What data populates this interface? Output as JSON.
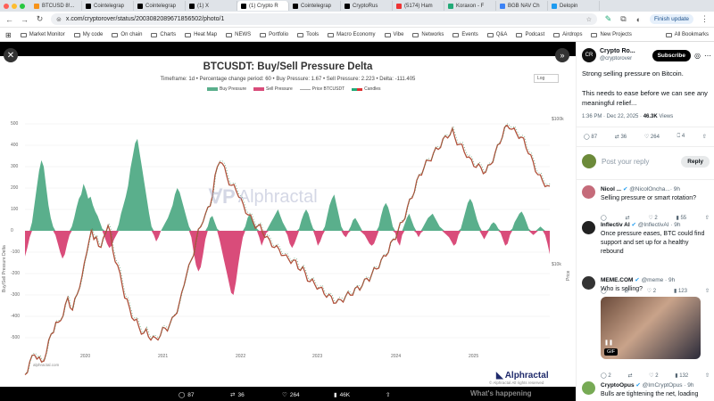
{
  "browser": {
    "tabs": [
      {
        "title": "BTCUSD 8!...",
        "color": "#f7931a"
      },
      {
        "title": "Cointelegrap",
        "color": "#000"
      },
      {
        "title": "Cointelegrap",
        "color": "#000"
      },
      {
        "title": "(1) X",
        "color": "#000"
      },
      {
        "title": "(1) Crypto R",
        "color": "#000",
        "active": true
      },
      {
        "title": "Cointelegrap",
        "color": "#000"
      },
      {
        "title": "CryptoRus",
        "color": "#000"
      },
      {
        "title": "(5174) Ham",
        "color": "#e33"
      },
      {
        "title": "Koraxon - F",
        "color": "#2a7"
      },
      {
        "title": "BGB NAV Ch",
        "color": "#3b82f6"
      },
      {
        "title": "Delopin",
        "color": "#1d9bf0"
      }
    ],
    "url": "x.com/cryptorover/status/2003082089671856502/photo/1",
    "finish_update": "Finish update",
    "bookmarks": [
      "Market Monitor",
      "My code",
      "On chain",
      "Charts",
      "Heat Map",
      "NEWS",
      "Portfolio",
      "Tools",
      "Macro Economy",
      "Vibe",
      "Networks",
      "Events",
      "Q&A",
      "Podcast",
      "Airdrops",
      "New Projects"
    ],
    "all_bookmarks": "All Bookmarks"
  },
  "chart_data": {
    "type": "area",
    "title": "BTCUSDT: Buy/Sell Pressure Delta",
    "subtitle": "Timeframe: 1d  •  Percentage change period: 60  •  Buy Pressure: 1.67  •  Sell Pressure: 2.223  •  Delta: -111.405",
    "legend": [
      "Buy Pressure",
      "Sell Pressure",
      "Price BTCUSDT",
      "Candles"
    ],
    "colors": {
      "buy": "#5aaf8c",
      "sell": "#d94c7a",
      "price": "#b0503a"
    },
    "ylabel": "Buy/Sell Pressure Delta",
    "y2label": "Price",
    "y_ticks": [
      500,
      400,
      300,
      200,
      100,
      0,
      -100,
      -200,
      -300,
      -400,
      -500
    ],
    "ylim": [
      -500,
      500
    ],
    "x_ticks": [
      "2020",
      "2021",
      "2022",
      "2023",
      "2024",
      "2025"
    ],
    "y2_ticks": [
      "$100k",
      "$10k"
    ],
    "log_selector": "Log",
    "watermark": "Alphractal",
    "brand": "Alphractal",
    "footer_left": "alphractal.com",
    "footer_right": "© Alphractal All rights reserved",
    "delta": [
      -120,
      -80,
      -30,
      40,
      120,
      200,
      280,
      330,
      300,
      210,
      120,
      60,
      20,
      -20,
      -60,
      -100,
      -130,
      -110,
      -60,
      -20,
      20,
      60,
      110,
      150,
      170,
      220,
      190,
      150,
      160,
      120,
      90,
      70,
      40,
      10,
      -30,
      -60,
      -80,
      -70,
      -40,
      -20,
      30,
      80,
      120,
      160,
      210,
      290,
      350,
      410,
      430,
      360,
      290,
      220,
      150,
      80,
      20,
      -20,
      -50,
      -30,
      0,
      20,
      40,
      60,
      90,
      120,
      170,
      200,
      180,
      140,
      100,
      60,
      20,
      -30,
      -100,
      -160,
      -190,
      -170,
      -110,
      -40,
      20,
      60,
      70,
      40,
      10,
      -40,
      -90,
      -140,
      -190,
      -240,
      -290,
      -300,
      -240,
      -160,
      -90,
      -30,
      20,
      60,
      80,
      60,
      30,
      10,
      -30,
      -70,
      -40,
      -10,
      20,
      40,
      60,
      80,
      100,
      70,
      40,
      20,
      -20,
      -60,
      -80,
      -60,
      -30,
      10,
      50,
      80,
      100,
      80,
      40,
      10,
      -30,
      -70,
      -50,
      -20,
      20,
      70,
      120,
      150,
      170,
      120,
      70,
      20,
      -20,
      -30,
      -10,
      20,
      50,
      60,
      40,
      20,
      -10,
      -20,
      -40,
      -60,
      -70,
      -60,
      -30,
      20,
      70,
      110,
      130,
      110,
      70,
      20,
      -10,
      -50,
      -70,
      -20,
      30,
      60,
      80,
      50,
      20,
      -10,
      -30,
      -10,
      20,
      40,
      60,
      70,
      80,
      60,
      40,
      20,
      10,
      -10,
      -20,
      -30,
      -50,
      -70,
      -60,
      -20,
      10,
      50,
      90,
      130,
      150,
      130,
      90,
      50,
      20,
      -20,
      -40,
      -20,
      10,
      30,
      40,
      30,
      10,
      -10,
      -40,
      -70,
      -60,
      -20,
      10,
      40,
      60,
      80,
      90,
      70,
      40,
      10,
      -10,
      -20,
      -10,
      10,
      20,
      10,
      -20,
      -60,
      -110
    ],
    "price_points": [
      5,
      12,
      20,
      25,
      32,
      28,
      24,
      18,
      26,
      34,
      44,
      55,
      62,
      70,
      66,
      74,
      82,
      90,
      98,
      92,
      88,
      96,
      104,
      118,
      128,
      140,
      158,
      176,
      184,
      170,
      180,
      168,
      160,
      174,
      186,
      192,
      178,
      160,
      150,
      140,
      128,
      118,
      104,
      96,
      86,
      80,
      74,
      70,
      64,
      60,
      56,
      58,
      54,
      52,
      50,
      48,
      52,
      56,
      60,
      62,
      64,
      68,
      72,
      80,
      86,
      92,
      104,
      120,
      132,
      138,
      146,
      158,
      172,
      182,
      190,
      200,
      204,
      210,
      218,
      232,
      250,
      262,
      274,
      270,
      260,
      252,
      246,
      240,
      238,
      236,
      230,
      222,
      214,
      210,
      206,
      200,
      195,
      192,
      190,
      188,
      184,
      180,
      175,
      170,
      168,
      166,
      162,
      160,
      158,
      154,
      150,
      150,
      148,
      146,
      144,
      140,
      138,
      136,
      130,
      126,
      122,
      120,
      118,
      116,
      112,
      110,
      108,
      105,
      102,
      100,
      98,
      96,
      95,
      98,
      100,
      102,
      104,
      106,
      108,
      110,
      112,
      114,
      118,
      120,
      124,
      126,
      130,
      134,
      138,
      142,
      146,
      150,
      156,
      160,
      166,
      172,
      178,
      184,
      190,
      196,
      204,
      212,
      220,
      228,
      236,
      244,
      252,
      258,
      264,
      268,
      272,
      276,
      280,
      284,
      288,
      292,
      296,
      300,
      304,
      306,
      308,
      300,
      296,
      292,
      288,
      284,
      280,
      274,
      270,
      268,
      266,
      264,
      262,
      260,
      258,
      262,
      268,
      274,
      280,
      288,
      296,
      304,
      310,
      314,
      316,
      312,
      308,
      306,
      304,
      300,
      296,
      290,
      284,
      276,
      268,
      262,
      256,
      250,
      246,
      244,
      240,
      236
    ]
  },
  "tweet": {
    "author": "Crypto Ro...",
    "handle": "@cryptorover",
    "subscribe": "Subscribe",
    "text1": "Strong selling pressure on Bitcoin.",
    "text2": "This needs to ease before we can see any meaningful relief...",
    "time": "1:36 PM · Dec 22, 2025 ·",
    "views": "46.3K",
    "views_label": "Views",
    "stats": {
      "replies": "87",
      "reposts": "36",
      "likes": "264",
      "bookmarks": "4"
    },
    "reply_placeholder": "Post your reply",
    "reply_button": "Reply"
  },
  "replies": [
    {
      "name": "Nicol ...",
      "handle": "@NicolOncha...",
      "time": "· 9h",
      "text": "Selling pressure or smart rotation?",
      "reply": "",
      "repost": "",
      "like": "2",
      "views": "55",
      "avatar": "#c56b7a"
    },
    {
      "name": "Inflectiv AI",
      "handle": "@InflectivAI · 9h",
      "time": "",
      "text": "Once pressure eases, BTC could find support and set up for a healthy rebound",
      "reply": "",
      "repost": "",
      "like": "2",
      "views": "123",
      "avatar": "#222"
    },
    {
      "name": "MEME.COM",
      "handle": "@meme · 9h",
      "time": "",
      "text": "Who is selling?",
      "reply": "2",
      "repost": "",
      "like": "2",
      "views": "132",
      "avatar": "#333",
      "gif": "GIF"
    },
    {
      "name": "CryptoOpus",
      "handle": "@ImCryptOpus · 9h",
      "time": "",
      "text": "Bulls are tightening the net, loading",
      "reply": "",
      "repost": "",
      "like": "",
      "views": "",
      "avatar": "#7a5"
    }
  ],
  "viewer_actions": {
    "replies": "87",
    "reposts": "36",
    "likes": "264",
    "views": "46K"
  },
  "whats_happening": "What's happening"
}
